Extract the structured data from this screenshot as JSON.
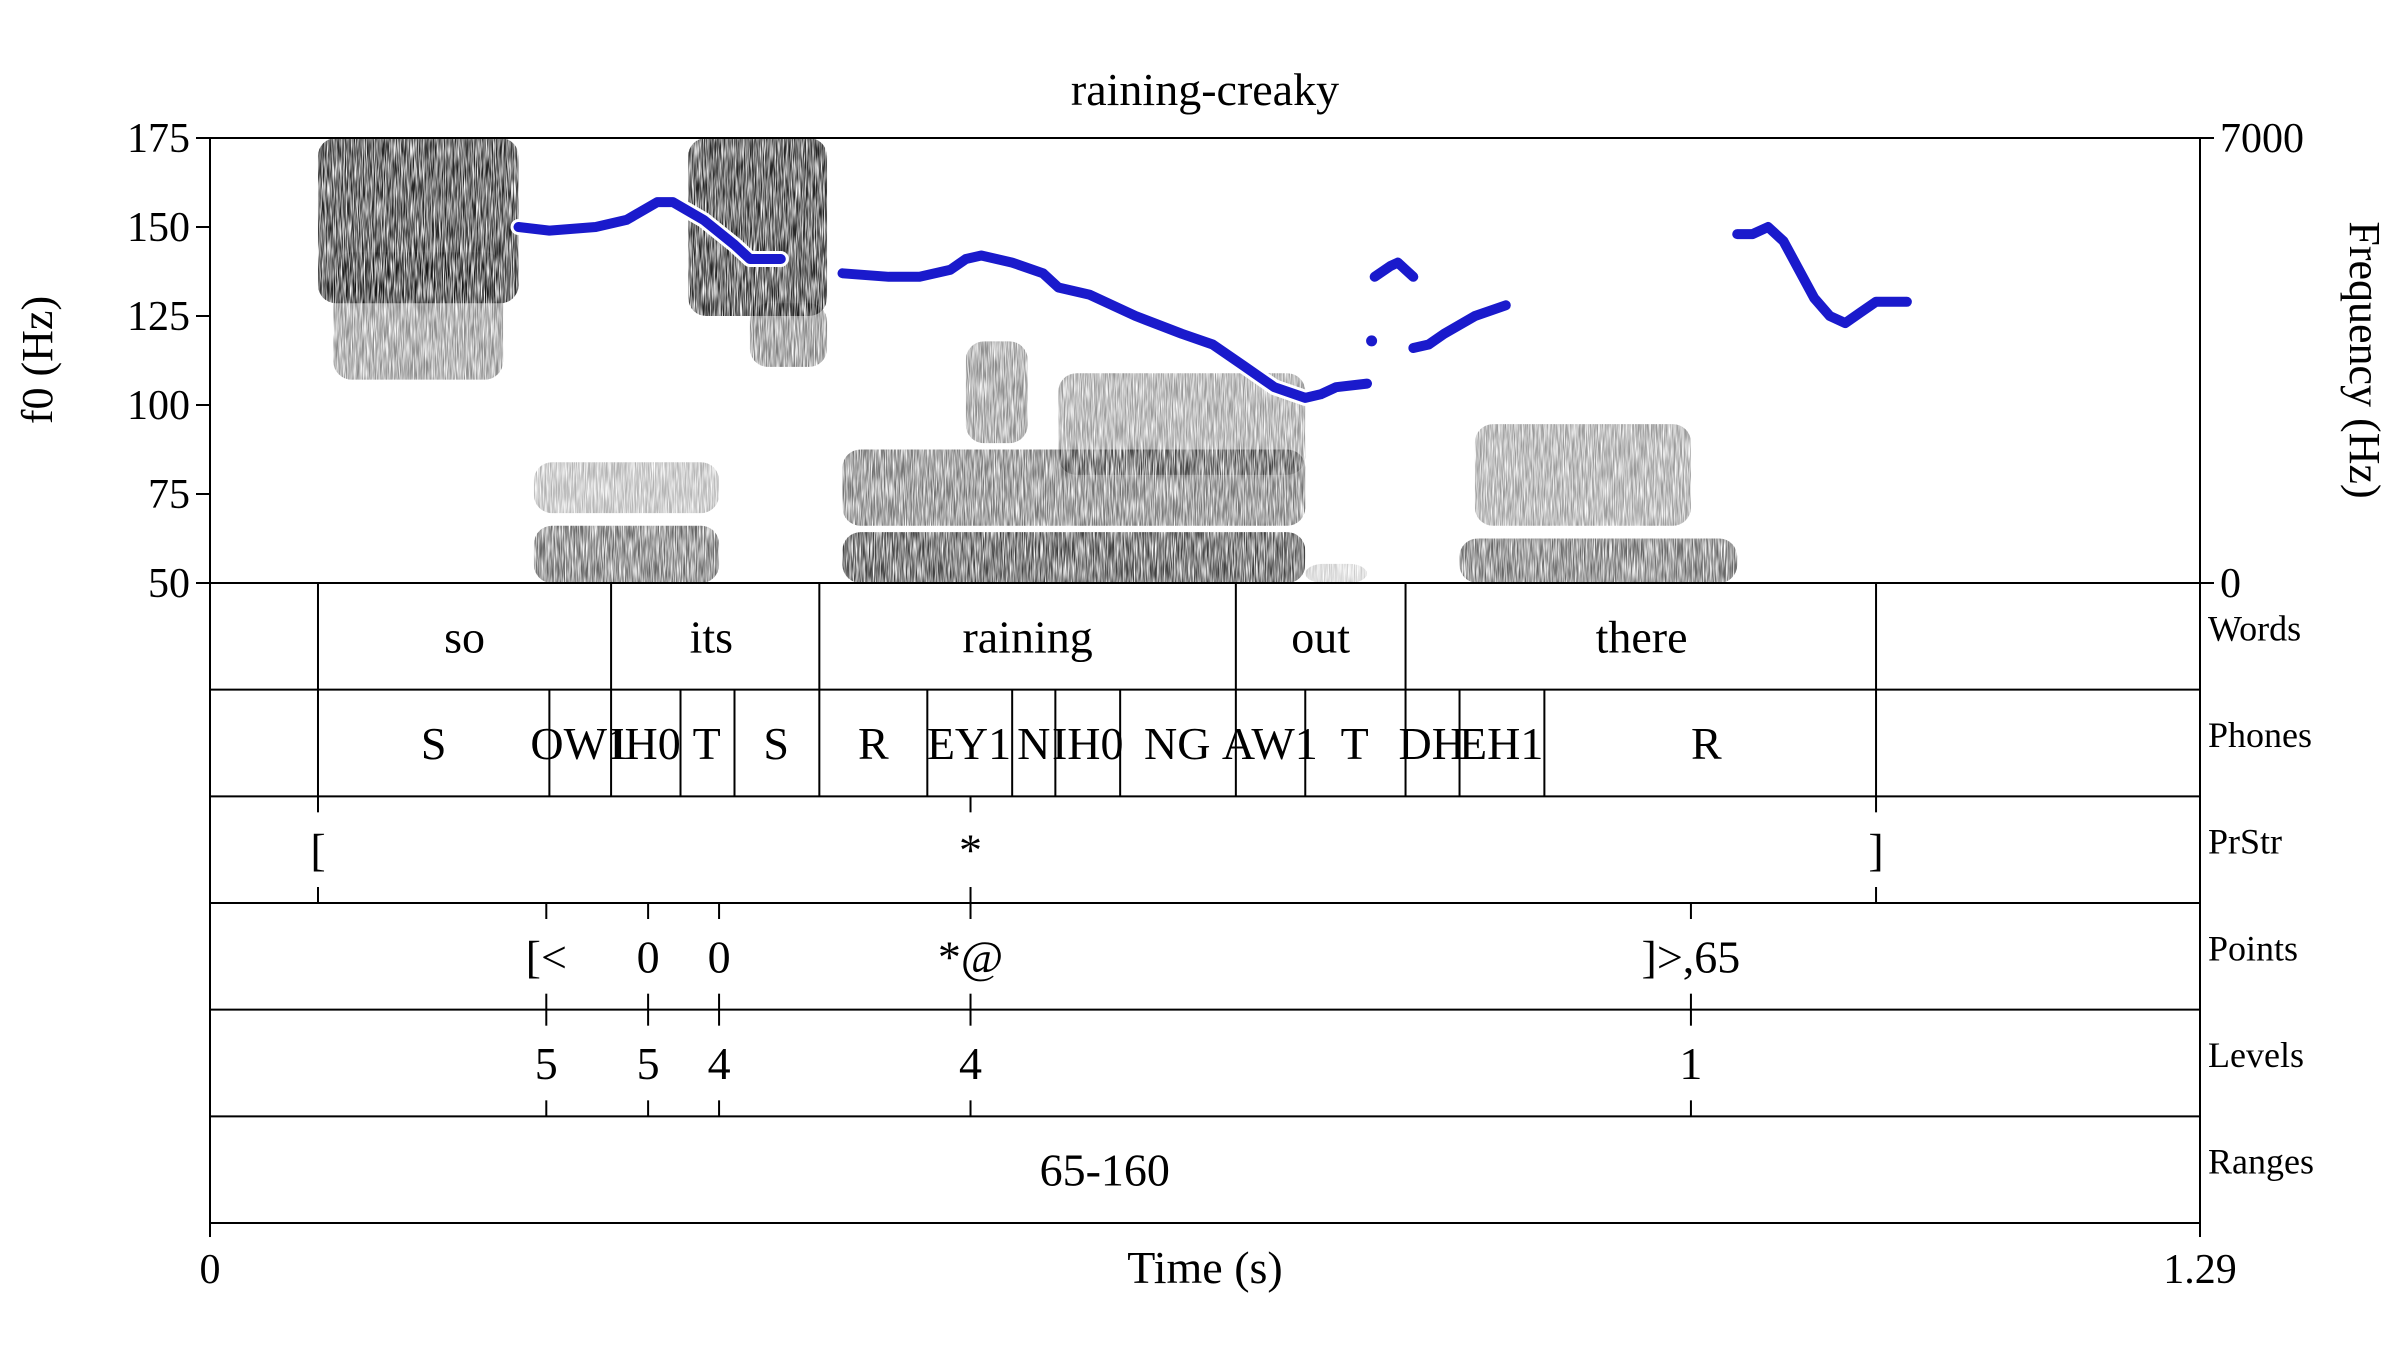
{
  "chart_data": {
    "type": "spectrogram",
    "title": "raining-creaky",
    "xlabel": "Time (s)",
    "ylabel_left": "f0 (Hz)",
    "ylabel_right": "Frequency (Hz)",
    "xlim": [
      0,
      1.29
    ],
    "x_ticks": [
      "0",
      "1.29"
    ],
    "f0_range": [
      50,
      175
    ],
    "f0_ticks": [
      50,
      75,
      100,
      125,
      150,
      175
    ],
    "freq_range": [
      0,
      7000
    ],
    "freq_ticks": [
      "0",
      "7000"
    ],
    "colors": {
      "f0_contour": "#1a1acc",
      "spectrogram": "#000000"
    },
    "spectrogram_energy": [
      {
        "t": [
          0.07,
          0.2
        ],
        "f": [
          4400,
          7000
        ],
        "level": 0.85
      },
      {
        "t": [
          0.08,
          0.19
        ],
        "f": [
          3200,
          5200
        ],
        "level": 0.45
      },
      {
        "t": [
          0.31,
          0.4
        ],
        "f": [
          4200,
          7000
        ],
        "level": 0.85
      },
      {
        "t": [
          0.35,
          0.4
        ],
        "f": [
          3400,
          4400
        ],
        "level": 0.5
      },
      {
        "t": [
          0.21,
          0.33
        ],
        "f": [
          0,
          900
        ],
        "level": 0.6
      },
      {
        "t": [
          0.21,
          0.33
        ],
        "f": [
          1100,
          1900
        ],
        "level": 0.3
      },
      {
        "t": [
          0.41,
          0.71
        ],
        "f": [
          0,
          800
        ],
        "level": 0.75
      },
      {
        "t": [
          0.41,
          0.71
        ],
        "f": [
          900,
          2100
        ],
        "level": 0.55
      },
      {
        "t": [
          0.49,
          0.53
        ],
        "f": [
          2200,
          3800
        ],
        "level": 0.45
      },
      {
        "t": [
          0.55,
          0.71
        ],
        "f": [
          1700,
          3300
        ],
        "level": 0.4
      },
      {
        "t": [
          0.71,
          0.75
        ],
        "f": [
          0,
          300
        ],
        "level": 0.2
      },
      {
        "t": [
          0.81,
          0.99
        ],
        "f": [
          0,
          700
        ],
        "level": 0.6
      },
      {
        "t": [
          0.82,
          0.96
        ],
        "f": [
          900,
          2500
        ],
        "level": 0.4
      }
    ],
    "f0_contour": [
      {
        "segment": [
          [
            0.2,
            150
          ],
          [
            0.22,
            149
          ],
          [
            0.25,
            150
          ],
          [
            0.27,
            152
          ],
          [
            0.29,
            157
          ],
          [
            0.3,
            157
          ],
          [
            0.32,
            152
          ],
          [
            0.34,
            145
          ],
          [
            0.35,
            141
          ],
          [
            0.37,
            141
          ]
        ]
      },
      {
        "segment": [
          [
            0.41,
            137
          ],
          [
            0.44,
            136
          ],
          [
            0.46,
            136
          ],
          [
            0.48,
            138
          ],
          [
            0.49,
            141
          ],
          [
            0.5,
            142
          ],
          [
            0.52,
            140
          ],
          [
            0.54,
            137
          ],
          [
            0.55,
            133
          ],
          [
            0.57,
            131
          ],
          [
            0.6,
            125
          ],
          [
            0.63,
            120
          ],
          [
            0.65,
            117
          ],
          [
            0.67,
            111
          ],
          [
            0.69,
            105
          ],
          [
            0.71,
            102
          ],
          [
            0.72,
            103
          ],
          [
            0.73,
            105
          ],
          [
            0.75,
            106
          ]
        ]
      },
      {
        "segment": [
          [
            0.755,
            136
          ],
          [
            0.765,
            139
          ],
          [
            0.77,
            140
          ],
          [
            0.775,
            138
          ],
          [
            0.78,
            136
          ]
        ]
      },
      {
        "segment": [
          [
            0.753,
            118
          ]
        ]
      },
      {
        "segment": [
          [
            0.78,
            116
          ],
          [
            0.79,
            117
          ],
          [
            0.8,
            120
          ],
          [
            0.82,
            125
          ],
          [
            0.84,
            128
          ]
        ]
      },
      {
        "segment": [
          [
            0.99,
            148
          ],
          [
            1.0,
            148
          ],
          [
            1.01,
            150
          ],
          [
            1.02,
            146
          ],
          [
            1.03,
            138
          ],
          [
            1.04,
            130
          ],
          [
            1.05,
            125
          ],
          [
            1.06,
            123
          ],
          [
            1.07,
            126
          ],
          [
            1.08,
            129
          ],
          [
            1.1,
            129
          ]
        ]
      }
    ],
    "tiers": [
      {
        "name": "Words",
        "type": "interval",
        "boundaries": [
          0.07,
          0.26,
          0.395,
          0.665,
          0.775,
          1.08
        ],
        "labels": [
          {
            "text": "so",
            "t": 0.165
          },
          {
            "text": "its",
            "t": 0.325
          },
          {
            "text": "raining",
            "t": 0.53
          },
          {
            "text": "out",
            "t": 0.72
          },
          {
            "text": "there",
            "t": 0.928
          }
        ]
      },
      {
        "name": "Phones",
        "type": "interval",
        "boundaries": [
          0.07,
          0.22,
          0.26,
          0.305,
          0.34,
          0.395,
          0.465,
          0.52,
          0.548,
          0.59,
          0.665,
          0.71,
          0.775,
          0.81,
          0.865,
          1.08
        ],
        "labels": [
          {
            "text": "S",
            "t": 0.145
          },
          {
            "text": "OW1",
            "t": 0.24
          },
          {
            "text": "IH0",
            "t": 0.282
          },
          {
            "text": "T",
            "t": 0.322
          },
          {
            "text": "S",
            "t": 0.367
          },
          {
            "text": "R",
            "t": 0.43
          },
          {
            "text": "EY1",
            "t": 0.492
          },
          {
            "text": "N",
            "t": 0.534
          },
          {
            "text": "IH0",
            "t": 0.569
          },
          {
            "text": "NG",
            "t": 0.627
          },
          {
            "text": "AW1",
            "t": 0.687
          },
          {
            "text": "T",
            "t": 0.742
          },
          {
            "text": "DH",
            "t": 0.792
          },
          {
            "text": "EH1",
            "t": 0.837
          },
          {
            "text": "R",
            "t": 0.97
          }
        ]
      },
      {
        "name": "PrStr",
        "type": "point",
        "points": [
          {
            "text": "[",
            "t": 0.07
          },
          {
            "text": "*",
            "t": 0.493
          },
          {
            "text": "]",
            "t": 1.08
          }
        ]
      },
      {
        "name": "Points",
        "type": "point",
        "points": [
          {
            "text": "[<",
            "t": 0.218
          },
          {
            "text": "0",
            "t": 0.284
          },
          {
            "text": "0",
            "t": 0.33
          },
          {
            "text": "*@",
            "t": 0.493
          },
          {
            "text": "]>,65",
            "t": 0.96
          }
        ]
      },
      {
        "name": "Levels",
        "type": "point",
        "points": [
          {
            "text": "5",
            "t": 0.218
          },
          {
            "text": "5",
            "t": 0.284
          },
          {
            "text": "4",
            "t": 0.33
          },
          {
            "text": "4",
            "t": 0.493
          },
          {
            "text": "1",
            "t": 0.96
          }
        ]
      },
      {
        "name": "Ranges",
        "type": "interval",
        "boundaries": [],
        "labels": [
          {
            "text": "65-160",
            "t": 0.58
          }
        ]
      }
    ]
  }
}
